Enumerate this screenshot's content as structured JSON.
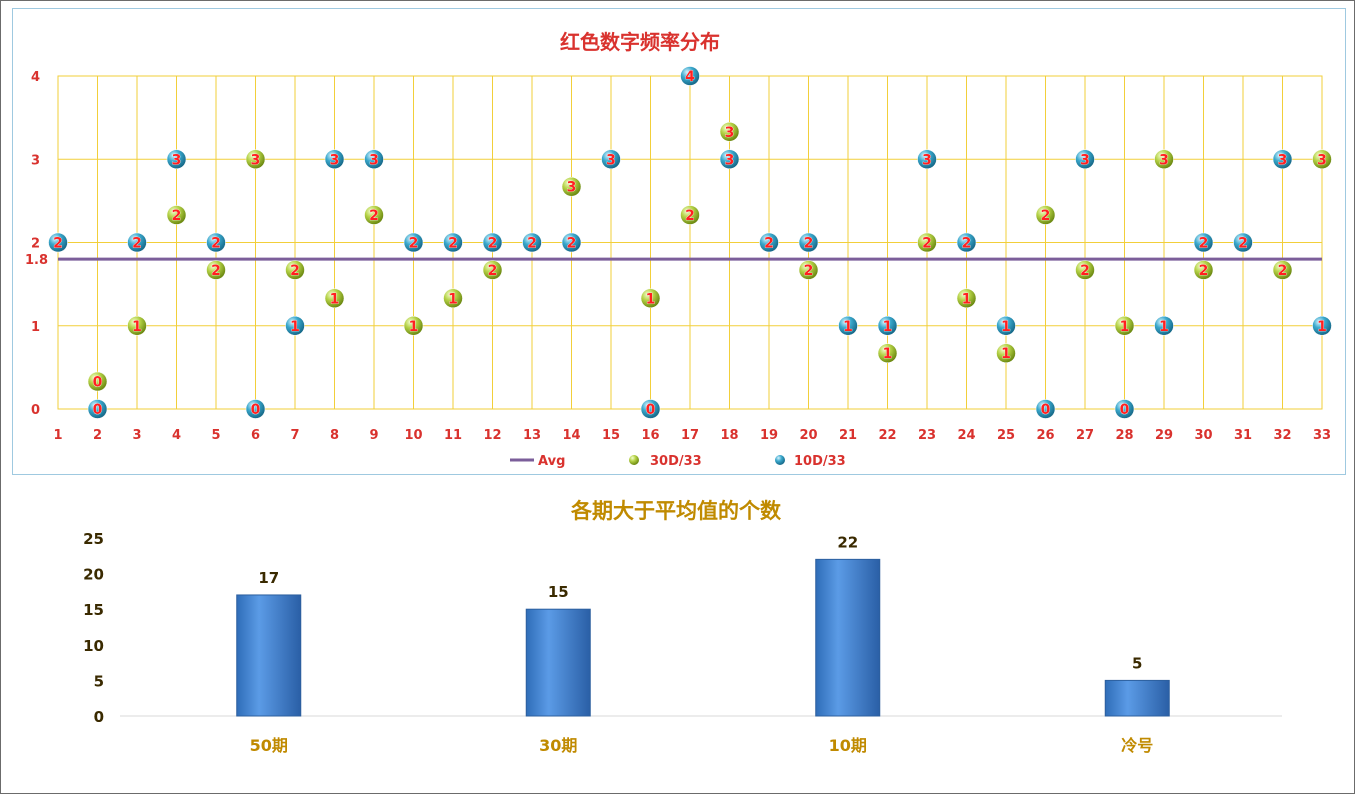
{
  "chart_data": [
    {
      "type": "scatter",
      "title": "红色数字频率分布",
      "x": [
        1,
        2,
        3,
        4,
        5,
        6,
        7,
        8,
        9,
        10,
        11,
        12,
        13,
        14,
        15,
        16,
        17,
        18,
        19,
        20,
        21,
        22,
        23,
        24,
        25,
        26,
        27,
        28,
        29,
        30,
        31,
        32,
        33
      ],
      "ylim": [
        0,
        4
      ],
      "yticks": [
        "0",
        "1",
        "2",
        "3",
        "4"
      ],
      "avg_label": "1.8",
      "avg_value": 1.8,
      "grid": true,
      "legend_position": "bottom",
      "legend": [
        "Avg",
        "30D/33",
        "10D/33"
      ],
      "colors": {
        "avg": "#7b5e9a",
        "series30": "#a8c63a",
        "series10": "#2f9fc2",
        "grid": "#f2cf3a",
        "label": "#ff2020"
      },
      "series": [
        {
          "name": "30D/33",
          "values": [
            2,
            0.33,
            1,
            2.33,
            1.67,
            3,
            1.67,
            1.33,
            2.33,
            1,
            1.33,
            1.67,
            2,
            2.67,
            3,
            1.33,
            2.33,
            3.33,
            2,
            1.67,
            1,
            0.67,
            2,
            1.33,
            0.67,
            2.33,
            1.67,
            1,
            3,
            1.67,
            2,
            1.67,
            3
          ],
          "labels": [
            "2",
            "0",
            "1",
            "2",
            "2",
            "3",
            "2",
            "1",
            "2",
            "1",
            "1",
            "2",
            "2",
            "3",
            "3",
            "1",
            "2",
            "3",
            "2",
            "2",
            "1",
            "1",
            "2",
            "1",
            "1",
            "2",
            "2",
            "1",
            "3",
            "2",
            "2",
            "2",
            "3"
          ]
        },
        {
          "name": "10D/33",
          "values": [
            2,
            0,
            2,
            3,
            2,
            0,
            1,
            3,
            3,
            2,
            2,
            2,
            2,
            2,
            3,
            0,
            4,
            3,
            2,
            2,
            1,
            1,
            3,
            2,
            1,
            0,
            3,
            0,
            1,
            2,
            2,
            3,
            1
          ],
          "labels": [
            "2",
            "0",
            "2",
            "3",
            "2",
            "0",
            "1",
            "3",
            "3",
            "2",
            "2",
            "2",
            "2",
            "2",
            "3",
            "0",
            "4",
            "3",
            "2",
            "2",
            "1",
            "1",
            "3",
            "2",
            "1",
            "0",
            "3",
            "0",
            "1",
            "2",
            "2",
            "3",
            "1"
          ]
        }
      ]
    },
    {
      "type": "bar",
      "title": "各期大于平均值的个数",
      "categories": [
        "50期",
        "30期",
        "10期",
        "冷号"
      ],
      "values": [
        17,
        15,
        22,
        5
      ],
      "ylim": [
        0,
        25
      ],
      "yticks": [
        "0",
        "5",
        "10",
        "15",
        "20",
        "25"
      ],
      "colors": {
        "bar": "#4a86d4",
        "bar_edge": "#2c5f9e"
      }
    }
  ]
}
